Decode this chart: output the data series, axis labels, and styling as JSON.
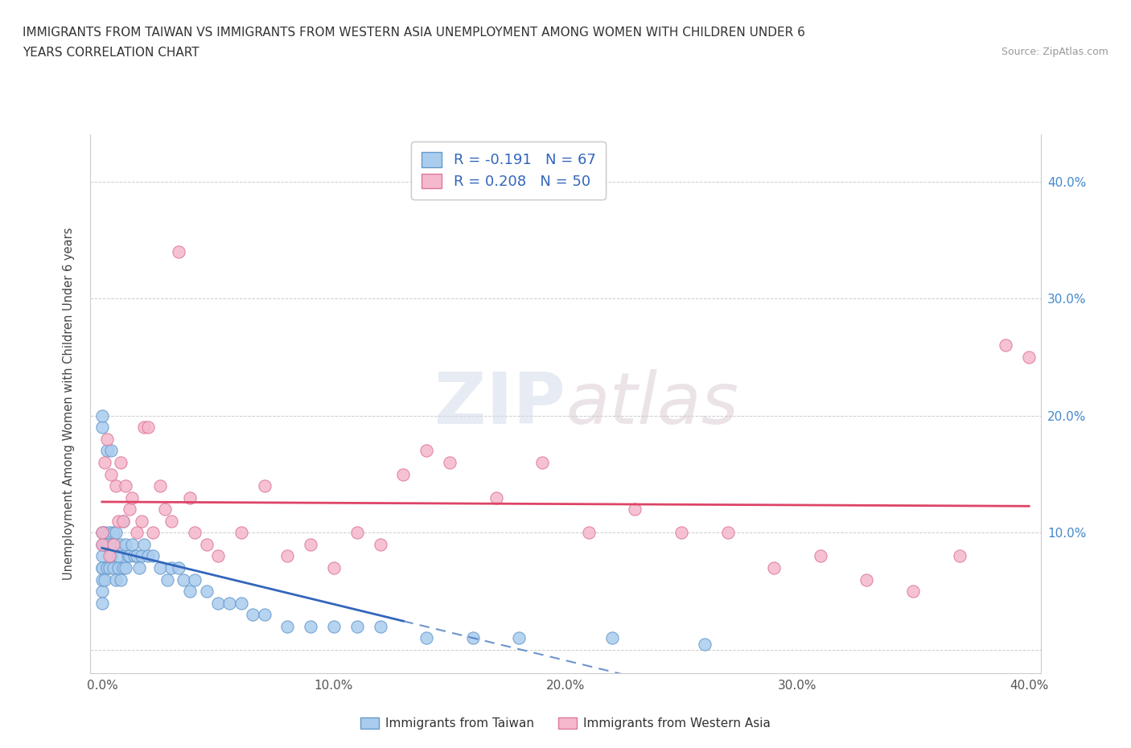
{
  "title_line1": "IMMIGRANTS FROM TAIWAN VS IMMIGRANTS FROM WESTERN ASIA UNEMPLOYMENT AMONG WOMEN WITH CHILDREN UNDER 6",
  "title_line2": "YEARS CORRELATION CHART",
  "source": "Source: ZipAtlas.com",
  "ylabel": "Unemployment Among Women with Children Under 6 years",
  "xlim": [
    -0.005,
    0.405
  ],
  "ylim": [
    -0.02,
    0.44
  ],
  "xticks": [
    0.0,
    0.1,
    0.2,
    0.3,
    0.4
  ],
  "yticks": [
    0.0,
    0.1,
    0.2,
    0.3,
    0.4
  ],
  "xticklabels": [
    "0.0%",
    "10.0%",
    "20.0%",
    "30.0%",
    "40.0%"
  ],
  "right_yticklabels": [
    "",
    "10.0%",
    "20.0%",
    "30.0%",
    "40.0%"
  ],
  "taiwan_color": "#aaccee",
  "taiwan_edge_color": "#6699cc",
  "western_asia_color": "#f5b8cc",
  "western_asia_edge_color": "#dd7799",
  "taiwan_trend_color": "#3366bb",
  "western_asia_trend_color": "#dd4466",
  "R_taiwan": -0.191,
  "N_taiwan": 67,
  "R_western_asia": 0.208,
  "N_western_asia": 50,
  "watermark_zip": "ZIP",
  "watermark_atlas": "atlas",
  "taiwan_x": [
    0.0,
    0.0,
    0.0,
    0.0,
    0.0,
    0.0,
    0.0,
    0.0,
    0.0,
    0.0,
    0.001,
    0.001,
    0.001,
    0.002,
    0.002,
    0.002,
    0.003,
    0.003,
    0.004,
    0.004,
    0.004,
    0.005,
    0.005,
    0.005,
    0.006,
    0.006,
    0.007,
    0.007,
    0.008,
    0.008,
    0.009,
    0.009,
    0.01,
    0.01,
    0.011,
    0.012,
    0.013,
    0.014,
    0.015,
    0.016,
    0.017,
    0.018,
    0.02,
    0.022,
    0.025,
    0.028,
    0.03,
    0.033,
    0.035,
    0.038,
    0.04,
    0.045,
    0.05,
    0.055,
    0.06,
    0.065,
    0.07,
    0.08,
    0.09,
    0.1,
    0.11,
    0.12,
    0.14,
    0.16,
    0.18,
    0.22,
    0.26
  ],
  "taiwan_y": [
    0.07,
    0.05,
    0.08,
    0.19,
    0.2,
    0.06,
    0.1,
    0.09,
    0.07,
    0.04,
    0.06,
    0.1,
    0.09,
    0.09,
    0.17,
    0.07,
    0.07,
    0.1,
    0.08,
    0.08,
    0.17,
    0.07,
    0.09,
    0.1,
    0.06,
    0.1,
    0.07,
    0.08,
    0.06,
    0.09,
    0.07,
    0.11,
    0.07,
    0.09,
    0.08,
    0.08,
    0.09,
    0.08,
    0.08,
    0.07,
    0.08,
    0.09,
    0.08,
    0.08,
    0.07,
    0.06,
    0.07,
    0.07,
    0.06,
    0.05,
    0.06,
    0.05,
    0.04,
    0.04,
    0.04,
    0.03,
    0.03,
    0.02,
    0.02,
    0.02,
    0.02,
    0.02,
    0.01,
    0.01,
    0.01,
    0.01,
    0.005
  ],
  "western_asia_x": [
    0.0,
    0.0,
    0.001,
    0.002,
    0.003,
    0.004,
    0.005,
    0.006,
    0.007,
    0.008,
    0.009,
    0.01,
    0.012,
    0.013,
    0.015,
    0.017,
    0.018,
    0.02,
    0.022,
    0.025,
    0.027,
    0.03,
    0.033,
    0.038,
    0.04,
    0.045,
    0.05,
    0.06,
    0.07,
    0.08,
    0.09,
    0.1,
    0.11,
    0.12,
    0.13,
    0.14,
    0.15,
    0.17,
    0.19,
    0.21,
    0.23,
    0.25,
    0.27,
    0.29,
    0.31,
    0.33,
    0.35,
    0.37,
    0.39,
    0.4
  ],
  "western_asia_y": [
    0.1,
    0.09,
    0.16,
    0.18,
    0.08,
    0.15,
    0.09,
    0.14,
    0.11,
    0.16,
    0.11,
    0.14,
    0.12,
    0.13,
    0.1,
    0.11,
    0.19,
    0.19,
    0.1,
    0.14,
    0.12,
    0.11,
    0.34,
    0.13,
    0.1,
    0.09,
    0.08,
    0.1,
    0.14,
    0.08,
    0.09,
    0.07,
    0.1,
    0.09,
    0.15,
    0.17,
    0.16,
    0.13,
    0.16,
    0.1,
    0.12,
    0.1,
    0.1,
    0.07,
    0.08,
    0.06,
    0.05,
    0.08,
    0.26,
    0.25
  ]
}
